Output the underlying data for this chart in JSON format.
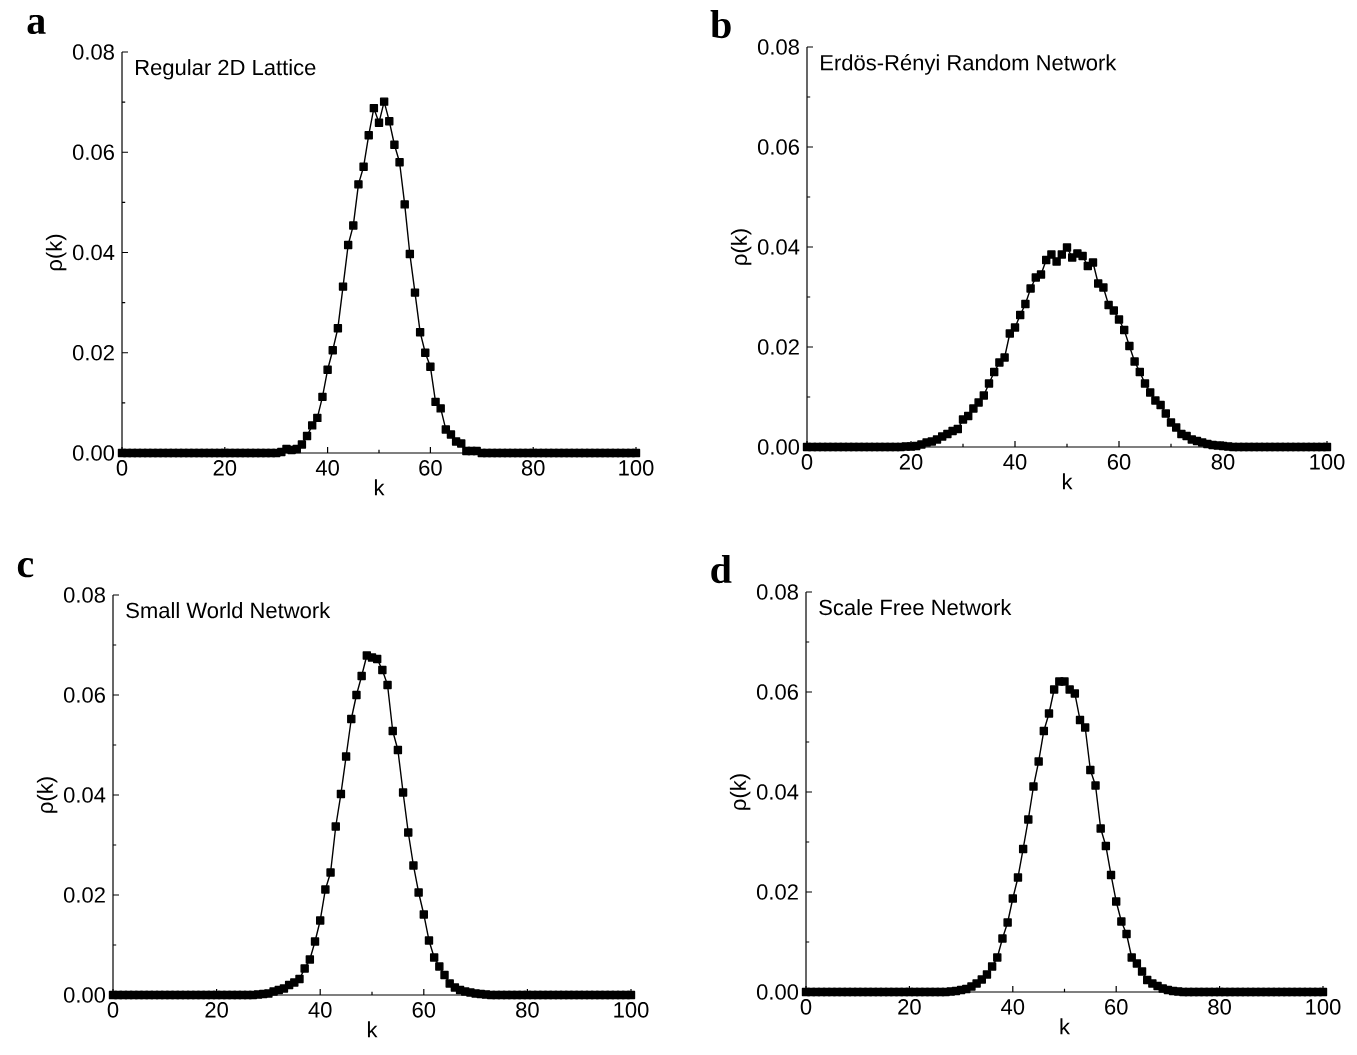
{
  "chart_data": [
    {
      "type": "line",
      "title": "Regular 2D Lattice",
      "xlabel": "k",
      "ylabel": "ρ(k)",
      "annotations": [
        "a"
      ],
      "color": "#000000",
      "marker": "square",
      "line_style": "solid",
      "xlim": [
        0,
        100
      ],
      "ylim": [
        0,
        0.08
      ],
      "xticks": [
        0,
        20,
        40,
        60,
        80,
        100
      ],
      "yticks": [
        {
          "value": 0,
          "label": "0.00"
        },
        {
          "value": 0.02,
          "label": "0.02"
        },
        {
          "value": 0.04,
          "label": "0.04"
        },
        {
          "value": 0.06,
          "label": "0.06"
        },
        {
          "value": 0.08,
          "label": "0.08"
        }
      ],
      "x": [
        0,
        1,
        2,
        3,
        4,
        5,
        6,
        7,
        8,
        9,
        10,
        11,
        12,
        13,
        14,
        15,
        16,
        17,
        18,
        19,
        20,
        21,
        22,
        23,
        24,
        25,
        26,
        27,
        28,
        29,
        30,
        31,
        32,
        33,
        34,
        35,
        36,
        37,
        38,
        39,
        40,
        41,
        42,
        43,
        44,
        45,
        46,
        47,
        48,
        49,
        50,
        51,
        52,
        53,
        54,
        55,
        56,
        57,
        58,
        59,
        60,
        61,
        62,
        63,
        64,
        65,
        66,
        67,
        68,
        69,
        70,
        71,
        72,
        73,
        74,
        75,
        76,
        77,
        78,
        79,
        80,
        81,
        82,
        83,
        84,
        85,
        86,
        87,
        88,
        89,
        90,
        91,
        92,
        93,
        94,
        95,
        96,
        97,
        98,
        99,
        100
      ],
      "values": [
        0,
        0,
        0,
        0,
        0,
        0,
        0,
        0,
        0,
        0,
        0,
        0,
        0,
        0,
        0,
        0,
        0,
        0,
        0,
        0,
        0,
        0,
        0,
        0,
        0,
        0,
        0,
        0,
        0,
        0,
        0,
        0.0002,
        0.0008,
        0.0006,
        0.0008,
        0.0017,
        0.0034,
        0.0055,
        0.007,
        0.0112,
        0.0166,
        0.0205,
        0.0249,
        0.0332,
        0.0415,
        0.0454,
        0.0536,
        0.0571,
        0.0634,
        0.0688,
        0.0659,
        0.0701,
        0.0662,
        0.0615,
        0.058,
        0.0496,
        0.0397,
        0.032,
        0.0241,
        0.02,
        0.0172,
        0.0102,
        0.0089,
        0.0047,
        0.0037,
        0.0023,
        0.0019,
        0.0004,
        0.0004,
        0.0004,
        0,
        0,
        0,
        0,
        0,
        0,
        0,
        0,
        0,
        0,
        0,
        0,
        0,
        0,
        0,
        0,
        0,
        0,
        0,
        0,
        0,
        0,
        0,
        0,
        0,
        0,
        0,
        0,
        0,
        0,
        0
      ]
    },
    {
      "type": "line",
      "title": "Erdös-Rényi Random Network",
      "xlabel": "k",
      "ylabel": "ρ(k)",
      "annotations": [
        "b"
      ],
      "color": "#000000",
      "marker": "square",
      "line_style": "solid",
      "xlim": [
        0,
        100
      ],
      "ylim": [
        0,
        0.08
      ],
      "xticks": [
        0,
        20,
        40,
        60,
        80,
        100
      ],
      "yticks": [
        {
          "value": 0,
          "label": "0.00"
        },
        {
          "value": 0.02,
          "label": "0.02"
        },
        {
          "value": 0.04,
          "label": "0.04"
        },
        {
          "value": 0.06,
          "label": "0.06"
        },
        {
          "value": 0.08,
          "label": "0.08"
        }
      ],
      "x": [
        0,
        1,
        2,
        3,
        4,
        5,
        6,
        7,
        8,
        9,
        10,
        11,
        12,
        13,
        14,
        15,
        16,
        17,
        18,
        19,
        20,
        21,
        22,
        23,
        24,
        25,
        26,
        27,
        28,
        29,
        30,
        31,
        32,
        33,
        34,
        35,
        36,
        37,
        38,
        39,
        40,
        41,
        42,
        43,
        44,
        45,
        46,
        47,
        48,
        49,
        50,
        51,
        52,
        53,
        54,
        55,
        56,
        57,
        58,
        59,
        60,
        61,
        62,
        63,
        64,
        65,
        66,
        67,
        68,
        69,
        70,
        71,
        72,
        73,
        74,
        75,
        76,
        77,
        78,
        79,
        80,
        81,
        82,
        83,
        84,
        85,
        86,
        87,
        88,
        89,
        90,
        91,
        92,
        93,
        94,
        95,
        96,
        97,
        98,
        99,
        100
      ],
      "values": [
        0,
        0,
        0,
        0,
        0,
        0,
        0,
        0,
        0,
        0,
        0,
        0,
        0,
        0,
        0,
        0,
        0,
        0,
        0,
        0.0001,
        0.0001,
        0.0002,
        0.0005,
        0.0009,
        0.0011,
        0.0015,
        0.0021,
        0.0026,
        0.0032,
        0.0036,
        0.0055,
        0.0062,
        0.0077,
        0.0089,
        0.0103,
        0.0127,
        0.015,
        0.0169,
        0.0179,
        0.0227,
        0.0239,
        0.0264,
        0.0286,
        0.0317,
        0.0339,
        0.0345,
        0.0374,
        0.0385,
        0.0371,
        0.0385,
        0.0399,
        0.0379,
        0.0387,
        0.0382,
        0.0362,
        0.0369,
        0.0327,
        0.0319,
        0.0284,
        0.0273,
        0.0255,
        0.0234,
        0.0202,
        0.0171,
        0.015,
        0.0127,
        0.0109,
        0.0093,
        0.0084,
        0.0067,
        0.0049,
        0.0039,
        0.0026,
        0.0022,
        0.0015,
        0.0012,
        0.0009,
        0.0006,
        0.0004,
        0.0003,
        0.0002,
        0.0001,
        0,
        0,
        0,
        0,
        0,
        0,
        0,
        0,
        0,
        0,
        0,
        0,
        0,
        0,
        0,
        0,
        0,
        0,
        0
      ]
    },
    {
      "type": "line",
      "title": "Small World Network",
      "xlabel": "k",
      "ylabel": "ρ(k)",
      "annotations": [
        "c"
      ],
      "color": "#000000",
      "marker": "square",
      "line_style": "solid",
      "xlim": [
        0,
        100
      ],
      "ylim": [
        0,
        0.08
      ],
      "xticks": [
        0,
        20,
        40,
        60,
        80,
        100
      ],
      "yticks": [
        {
          "value": 0,
          "label": "0.00"
        },
        {
          "value": 0.02,
          "label": "0.02"
        },
        {
          "value": 0.04,
          "label": "0.04"
        },
        {
          "value": 0.06,
          "label": "0.06"
        },
        {
          "value": 0.08,
          "label": "0.08"
        }
      ],
      "x": [
        0,
        1,
        2,
        3,
        4,
        5,
        6,
        7,
        8,
        9,
        10,
        11,
        12,
        13,
        14,
        15,
        16,
        17,
        18,
        19,
        20,
        21,
        22,
        23,
        24,
        25,
        26,
        27,
        28,
        29,
        30,
        31,
        32,
        33,
        34,
        35,
        36,
        37,
        38,
        39,
        40,
        41,
        42,
        43,
        44,
        45,
        46,
        47,
        48,
        49,
        50,
        51,
        52,
        53,
        54,
        55,
        56,
        57,
        58,
        59,
        60,
        61,
        62,
        63,
        64,
        65,
        66,
        67,
        68,
        69,
        70,
        71,
        72,
        73,
        74,
        75,
        76,
        77,
        78,
        79,
        80,
        81,
        82,
        83,
        84,
        85,
        86,
        87,
        88,
        89,
        90,
        91,
        92,
        93,
        94,
        95,
        96,
        97,
        98,
        99,
        100
      ],
      "values": [
        0,
        0,
        0,
        0,
        0,
        0,
        0,
        0,
        0,
        0,
        0,
        0,
        0,
        0,
        0,
        0,
        0,
        0,
        0,
        0,
        0,
        0,
        0,
        0,
        0,
        0,
        0,
        0,
        0.0001,
        0.0002,
        0.0003,
        0.0007,
        0.001,
        0.0013,
        0.002,
        0.0025,
        0.0032,
        0.0053,
        0.0071,
        0.0107,
        0.0149,
        0.0211,
        0.0245,
        0.0337,
        0.0402,
        0.0477,
        0.0552,
        0.06,
        0.0638,
        0.0679,
        0.0675,
        0.0672,
        0.065,
        0.062,
        0.0528,
        0.049,
        0.0405,
        0.0325,
        0.0259,
        0.0205,
        0.0161,
        0.0109,
        0.0075,
        0.0057,
        0.004,
        0.0023,
        0.0015,
        0.001,
        0.0007,
        0.0005,
        0.0003,
        0.0002,
        0.0001,
        0,
        0,
        0,
        0,
        0,
        0,
        0,
        0,
        0,
        0,
        0,
        0,
        0,
        0,
        0,
        0,
        0,
        0,
        0,
        0,
        0,
        0,
        0,
        0,
        0,
        0,
        0,
        0
      ]
    },
    {
      "type": "line",
      "title": "Scale Free Network",
      "xlabel": "k",
      "ylabel": "ρ(k)",
      "annotations": [
        "d"
      ],
      "color": "#000000",
      "marker": "square",
      "line_style": "solid",
      "xlim": [
        0,
        100
      ],
      "ylim": [
        0,
        0.08
      ],
      "xticks": [
        0,
        20,
        40,
        60,
        80,
        100
      ],
      "yticks": [
        {
          "value": 0,
          "label": "0.00"
        },
        {
          "value": 0.02,
          "label": "0.02"
        },
        {
          "value": 0.04,
          "label": "0.04"
        },
        {
          "value": 0.06,
          "label": "0.06"
        },
        {
          "value": 0.08,
          "label": "0.08"
        }
      ],
      "x": [
        0,
        1,
        2,
        3,
        4,
        5,
        6,
        7,
        8,
        9,
        10,
        11,
        12,
        13,
        14,
        15,
        16,
        17,
        18,
        19,
        20,
        21,
        22,
        23,
        24,
        25,
        26,
        27,
        28,
        29,
        30,
        31,
        32,
        33,
        34,
        35,
        36,
        37,
        38,
        39,
        40,
        41,
        42,
        43,
        44,
        45,
        46,
        47,
        48,
        49,
        50,
        51,
        52,
        53,
        54,
        55,
        56,
        57,
        58,
        59,
        60,
        61,
        62,
        63,
        64,
        65,
        66,
        67,
        68,
        69,
        70,
        71,
        72,
        73,
        74,
        75,
        76,
        77,
        78,
        79,
        80,
        81,
        82,
        83,
        84,
        85,
        86,
        87,
        88,
        89,
        90,
        91,
        92,
        93,
        94,
        95,
        96,
        97,
        98,
        99,
        100
      ],
      "values": [
        0,
        0,
        0,
        0,
        0,
        0,
        0,
        0,
        0,
        0,
        0,
        0,
        0,
        0,
        0,
        0,
        0,
        0,
        0,
        0,
        0,
        0,
        0,
        0,
        0,
        0,
        0,
        0,
        0.0001,
        0.0002,
        0.0004,
        0.0006,
        0.0011,
        0.0017,
        0.0025,
        0.0035,
        0.0051,
        0.0069,
        0.0107,
        0.0139,
        0.0187,
        0.0229,
        0.0286,
        0.0345,
        0.0411,
        0.0461,
        0.0522,
        0.0557,
        0.0605,
        0.0621,
        0.0621,
        0.0605,
        0.0597,
        0.0544,
        0.0529,
        0.0444,
        0.0413,
        0.0327,
        0.0292,
        0.0234,
        0.0181,
        0.0141,
        0.0116,
        0.0069,
        0.0057,
        0.0041,
        0.0024,
        0.0017,
        0.0012,
        0.0007,
        0.0004,
        0.0002,
        0.0001,
        0,
        0,
        0,
        0,
        0,
        0,
        0,
        0,
        0,
        0,
        0,
        0,
        0,
        0,
        0,
        0,
        0,
        0,
        0,
        0,
        0,
        0,
        0,
        0,
        0,
        0,
        0,
        0
      ]
    }
  ]
}
